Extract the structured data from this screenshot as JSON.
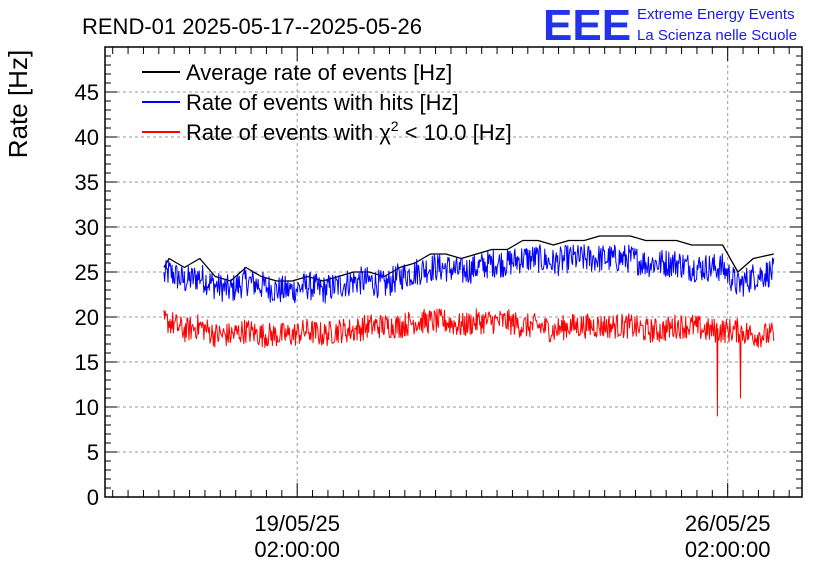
{
  "header": {
    "title": "REND-01 2025-05-17--2025-05-26",
    "logo_mark": "EEE",
    "logo_line1": "Extreme Energy Events",
    "logo_line2": "La Scienza nelle Scuole"
  },
  "chart_data": {
    "type": "line",
    "title": "REND-01 2025-05-17--2025-05-26",
    "ylabel": "Rate [Hz]",
    "xlabel": "",
    "ylim": [
      0,
      50
    ],
    "yticks": [
      0,
      5,
      10,
      15,
      20,
      25,
      30,
      35,
      40,
      45
    ],
    "ytick_labels": [
      "0",
      "5",
      "10",
      "15",
      "20",
      "25",
      "30",
      "35",
      "40",
      "45"
    ],
    "xlim": [
      "2025-05-15 23:00",
      "2025-05-27 07:00"
    ],
    "xticks": [
      {
        "date": "19/05/25",
        "time": "02:00:00",
        "t": "2025-05-19 02:00"
      },
      {
        "date": "26/05/25",
        "time": "02:00:00",
        "t": "2025-05-26 02:00"
      }
    ],
    "grid": true,
    "legend_position": "top-left",
    "legend": [
      {
        "label": "Average rate of events [Hz]",
        "color": "#000000"
      },
      {
        "label": "Rate of events with hits [Hz]",
        "color": "#0000ff"
      },
      {
        "label_prefix": "Rate of events with ",
        "label_symbol": "χ",
        "label_sup": "2",
        "label_suffix": " < 10.0 [Hz]",
        "color": "#ff0000"
      }
    ],
    "series": [
      {
        "name": "Average rate of events [Hz]",
        "color": "#000000",
        "x": [
          "2025-05-16 22:00",
          "2025-05-17 00:00",
          "2025-05-17 06:00",
          "2025-05-17 12:00",
          "2025-05-17 18:00",
          "2025-05-18 00:00",
          "2025-05-18 06:00",
          "2025-05-18 12:00",
          "2025-05-18 18:00",
          "2025-05-19 00:00",
          "2025-05-19 06:00",
          "2025-05-19 12:00",
          "2025-05-19 18:00",
          "2025-05-20 00:00",
          "2025-05-20 06:00",
          "2025-05-20 12:00",
          "2025-05-20 18:00",
          "2025-05-21 00:00",
          "2025-05-21 06:00",
          "2025-05-21 12:00",
          "2025-05-21 18:00",
          "2025-05-22 00:00",
          "2025-05-22 06:00",
          "2025-05-22 12:00",
          "2025-05-22 18:00",
          "2025-05-23 00:00",
          "2025-05-23 06:00",
          "2025-05-23 12:00",
          "2025-05-23 18:00",
          "2025-05-24 00:00",
          "2025-05-24 06:00",
          "2025-05-24 12:00",
          "2025-05-24 18:00",
          "2025-05-25 00:00",
          "2025-05-25 06:00",
          "2025-05-25 12:00",
          "2025-05-25 18:00",
          "2025-05-26 00:00",
          "2025-05-26 06:00",
          "2025-05-26 12:00",
          "2025-05-26 20:00"
        ],
        "y": [
          25.5,
          26.5,
          25.5,
          26.5,
          24.5,
          24.0,
          25.5,
          24.5,
          24.0,
          24.0,
          24.5,
          24.0,
          24.5,
          25.0,
          25.0,
          24.5,
          25.5,
          26.0,
          27.0,
          27.0,
          26.5,
          27.0,
          27.5,
          27.5,
          28.5,
          28.5,
          28.0,
          28.5,
          28.5,
          29.0,
          29.0,
          29.0,
          28.5,
          28.5,
          28.5,
          28.0,
          28.0,
          28.0,
          25.0,
          26.5,
          27.0
        ]
      },
      {
        "name": "Rate of events with hits [Hz]",
        "color": "#0000ff",
        "x": [
          "2025-05-16 22:00",
          "2025-05-17 00:00",
          "2025-05-17 06:00",
          "2025-05-17 12:00",
          "2025-05-17 18:00",
          "2025-05-18 00:00",
          "2025-05-18 06:00",
          "2025-05-18 12:00",
          "2025-05-18 18:00",
          "2025-05-19 00:00",
          "2025-05-19 06:00",
          "2025-05-19 12:00",
          "2025-05-19 18:00",
          "2025-05-20 00:00",
          "2025-05-20 06:00",
          "2025-05-20 12:00",
          "2025-05-20 18:00",
          "2025-05-21 00:00",
          "2025-05-21 06:00",
          "2025-05-21 12:00",
          "2025-05-21 18:00",
          "2025-05-22 00:00",
          "2025-05-22 06:00",
          "2025-05-22 12:00",
          "2025-05-22 18:00",
          "2025-05-23 00:00",
          "2025-05-23 06:00",
          "2025-05-23 12:00",
          "2025-05-23 18:00",
          "2025-05-24 00:00",
          "2025-05-24 06:00",
          "2025-05-24 12:00",
          "2025-05-24 18:00",
          "2025-05-25 00:00",
          "2025-05-25 06:00",
          "2025-05-25 12:00",
          "2025-05-25 18:00",
          "2025-05-26 00:00",
          "2025-05-26 06:00",
          "2025-05-26 12:00",
          "2025-05-26 20:00"
        ],
        "y": [
          24.5,
          25.0,
          24.0,
          24.5,
          23.5,
          23.0,
          24.0,
          23.5,
          23.0,
          23.0,
          23.5,
          23.0,
          23.5,
          24.0,
          24.0,
          23.5,
          24.5,
          25.0,
          25.5,
          25.5,
          25.0,
          25.5,
          26.0,
          26.0,
          26.5,
          26.5,
          26.0,
          26.5,
          26.5,
          26.5,
          26.5,
          26.5,
          26.0,
          26.0,
          26.0,
          25.5,
          25.5,
          25.5,
          23.5,
          24.5,
          25.0
        ],
        "spread": 1.6
      },
      {
        "name_prefix": "Rate of events with ",
        "name_symbol": "χ",
        "name_sup": "2",
        "name_suffix": " < 10.0 [Hz]",
        "color": "#ff0000",
        "x": [
          "2025-05-16 22:00",
          "2025-05-17 00:00",
          "2025-05-17 06:00",
          "2025-05-17 12:00",
          "2025-05-17 18:00",
          "2025-05-18 00:00",
          "2025-05-18 06:00",
          "2025-05-18 12:00",
          "2025-05-18 18:00",
          "2025-05-19 00:00",
          "2025-05-19 06:00",
          "2025-05-19 12:00",
          "2025-05-19 18:00",
          "2025-05-20 00:00",
          "2025-05-20 06:00",
          "2025-05-20 12:00",
          "2025-05-20 18:00",
          "2025-05-21 00:00",
          "2025-05-21 06:00",
          "2025-05-21 12:00",
          "2025-05-21 18:00",
          "2025-05-22 00:00",
          "2025-05-22 06:00",
          "2025-05-22 12:00",
          "2025-05-22 18:00",
          "2025-05-23 00:00",
          "2025-05-23 06:00",
          "2025-05-23 12:00",
          "2025-05-23 18:00",
          "2025-05-24 00:00",
          "2025-05-24 06:00",
          "2025-05-24 12:00",
          "2025-05-24 18:00",
          "2025-05-25 00:00",
          "2025-05-25 06:00",
          "2025-05-25 12:00",
          "2025-05-25 18:00",
          "2025-05-26 00:00",
          "2025-05-26 06:00",
          "2025-05-26 12:00",
          "2025-05-26 20:00"
        ],
        "y": [
          19.5,
          19.5,
          18.5,
          19.0,
          18.0,
          18.0,
          18.5,
          18.0,
          18.0,
          18.0,
          18.5,
          18.0,
          18.5,
          18.5,
          19.0,
          19.0,
          19.0,
          19.5,
          19.5,
          19.5,
          19.0,
          19.5,
          19.5,
          19.5,
          19.0,
          19.0,
          18.5,
          19.0,
          19.0,
          19.0,
          19.0,
          19.0,
          18.5,
          18.5,
          19.0,
          19.0,
          18.5,
          18.5,
          18.5,
          18.0,
          18.0
        ],
        "spread": 1.4,
        "dips": [
          {
            "x": "2025-05-25 22:00",
            "y": 9.0
          },
          {
            "x": "2025-05-26 07:00",
            "y": 11.0
          }
        ]
      }
    ]
  }
}
